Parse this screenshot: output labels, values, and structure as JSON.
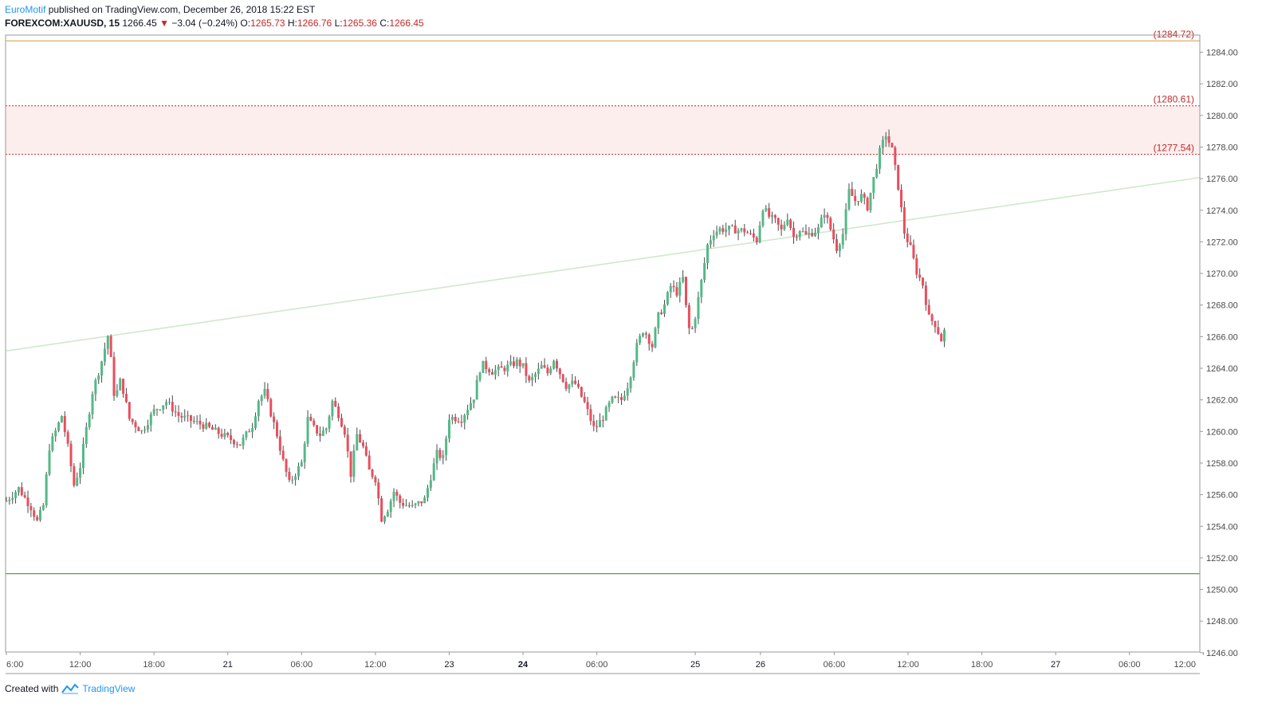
{
  "header": {
    "author": "EuroMotif",
    "published": " published on TradingView.com, December 26, 2018 15:22 EST",
    "symbol": "FOREXCOM:XAUUSD, 15",
    "last": "1266.45",
    "change_arrow": "▼",
    "change": "−3.04 (−0.24%)",
    "o_label": "O:",
    "o_value": "1265.73",
    "h_label": "H:",
    "h_value": "1266.76",
    "l_label": "L:",
    "l_value": "1265.36",
    "c_label": "C:",
    "c_value": "1266.45"
  },
  "footer": {
    "created_with": "Created with",
    "brand": "TradingView"
  },
  "colors": {
    "up": "#53b987",
    "down": "#eb4d5c",
    "level_red": "#c62828",
    "zone_fill": "#fdeeee",
    "support": "#3a7d2c",
    "trendline": "#cfe8cf",
    "top_line": "#d49a3c"
  },
  "chart_data": {
    "type": "candlestick",
    "ylim": [
      1246,
      1285.5
    ],
    "y_ticks": [
      "1284.00",
      "1282.00",
      "1280.00",
      "1278.00",
      "1276.00",
      "1274.00",
      "1272.00",
      "1270.00",
      "1268.00",
      "1266.00",
      "1264.00",
      "1262.00",
      "1260.00",
      "1258.00",
      "1256.00",
      "1254.00",
      "1252.00",
      "1250.00",
      "1248.00",
      "1246.00"
    ],
    "x_ticks": [
      {
        "label": "6:00",
        "t": 0.0
      },
      {
        "label": "12:00",
        "t": 6
      },
      {
        "label": "18:00",
        "t": 12
      },
      {
        "label": "21",
        "t": 18
      },
      {
        "label": "06:00",
        "t": 24
      },
      {
        "label": "12:00",
        "t": 30
      },
      {
        "label": "23",
        "t": 36
      },
      {
        "label": "24",
        "t": 42
      },
      {
        "label": "06:00",
        "t": 48
      },
      {
        "label": "25",
        "t": 56
      },
      {
        "label": "26",
        "t": 61.3
      },
      {
        "label": "06:00",
        "t": 67.3
      },
      {
        "label": "12:00",
        "t": 73.3
      },
      {
        "label": "18:00",
        "t": 79.3
      },
      {
        "label": "27",
        "t": 85.3
      },
      {
        "label": "06:00",
        "t": 91.3
      },
      {
        "label": "12:00",
        "t": 97.3
      }
    ],
    "levels": [
      {
        "label": "(1284.72)",
        "value": 1284.72,
        "kind": "top"
      },
      {
        "label": "(1280.61)",
        "value": 1280.61,
        "kind": "zone"
      },
      {
        "label": "(1277.54)",
        "value": 1277.54,
        "kind": "zone"
      }
    ],
    "support": 1251.0,
    "trendline": {
      "from": {
        "t": 0,
        "y": 1265.1
      },
      "to": {
        "t": 97.3,
        "y": 1276.1
      }
    },
    "anchors": [
      [
        0,
        1255.6
      ],
      [
        1,
        1256.4
      ],
      [
        2,
        1255.2
      ],
      [
        2.5,
        1254.3
      ],
      [
        3,
        1255.3
      ],
      [
        3.5,
        1259.0
      ],
      [
        4,
        1260.0
      ],
      [
        4.5,
        1261.0
      ],
      [
        5,
        1259.0
      ],
      [
        5.5,
        1256.6
      ],
      [
        6,
        1257.8
      ],
      [
        7,
        1262.5
      ],
      [
        7.7,
        1264.3
      ],
      [
        8.3,
        1266.2
      ],
      [
        8.8,
        1262.0
      ],
      [
        9.3,
        1263.3
      ],
      [
        10,
        1260.8
      ],
      [
        11,
        1260.0
      ],
      [
        12,
        1261.3
      ],
      [
        13,
        1261.9
      ],
      [
        14,
        1261.0
      ],
      [
        15,
        1260.7
      ],
      [
        16,
        1260.4
      ],
      [
        17,
        1260.0
      ],
      [
        18,
        1259.6
      ],
      [
        19,
        1259.2
      ],
      [
        20,
        1260.4
      ],
      [
        20.5,
        1262.0
      ],
      [
        21,
        1262.5
      ],
      [
        22,
        1259.8
      ],
      [
        22.5,
        1258.1
      ],
      [
        23,
        1256.7
      ],
      [
        24,
        1258.0
      ],
      [
        24.5,
        1260.8
      ],
      [
        25,
        1260.2
      ],
      [
        25.5,
        1259.8
      ],
      [
        26,
        1260.2
      ],
      [
        26.5,
        1261.9
      ],
      [
        27,
        1261.1
      ],
      [
        27.5,
        1260.0
      ],
      [
        28,
        1257.3
      ],
      [
        28.5,
        1259.8
      ],
      [
        29,
        1259.0
      ],
      [
        29.5,
        1257.5
      ],
      [
        30,
        1257.0
      ],
      [
        30.5,
        1254.5
      ],
      [
        31,
        1255.1
      ],
      [
        31.5,
        1256.2
      ],
      [
        32,
        1255.5
      ],
      [
        33,
        1255.2
      ],
      [
        34,
        1255.7
      ],
      [
        35,
        1258.6
      ],
      [
        35.5,
        1258.3
      ],
      [
        36,
        1260.9
      ],
      [
        37,
        1260.8
      ],
      [
        38,
        1262.2
      ],
      [
        38.6,
        1264.3
      ],
      [
        39.5,
        1263.8
      ],
      [
        40.5,
        1264.0
      ],
      [
        41.5,
        1264.4
      ],
      [
        42,
        1264.1
      ],
      [
        42.5,
        1263.1
      ],
      [
        43.5,
        1264.1
      ],
      [
        44,
        1263.7
      ],
      [
        44.5,
        1264.6
      ],
      [
        45,
        1263.7
      ],
      [
        45.5,
        1262.9
      ],
      [
        46.2,
        1263.1
      ],
      [
        47,
        1261.8
      ],
      [
        47.8,
        1260.1
      ],
      [
        48.5,
        1260.9
      ],
      [
        49.2,
        1262.0
      ],
      [
        50,
        1262.0
      ],
      [
        50.6,
        1263.1
      ],
      [
        51.2,
        1265.3
      ],
      [
        51.8,
        1266.5
      ],
      [
        52.5,
        1265.4
      ],
      [
        53,
        1267.3
      ],
      [
        53.5,
        1268.0
      ],
      [
        54,
        1269.2
      ],
      [
        54.5,
        1268.8
      ],
      [
        55,
        1269.7
      ],
      [
        55.3,
        1267.5
      ],
      [
        55.6,
        1266.0
      ],
      [
        56,
        1267.3
      ],
      [
        56.5,
        1269.5
      ],
      [
        57,
        1271.8
      ],
      [
        57.5,
        1272.6
      ],
      [
        58,
        1272.8
      ],
      [
        59,
        1272.8
      ],
      [
        60,
        1272.7
      ],
      [
        61,
        1272.1
      ],
      [
        61.5,
        1274.2
      ],
      [
        62,
        1273.6
      ],
      [
        62.5,
        1273.3
      ],
      [
        63,
        1272.7
      ],
      [
        63.5,
        1273.6
      ],
      [
        64,
        1272.3
      ],
      [
        64.5,
        1272.8
      ],
      [
        65,
        1272.4
      ],
      [
        66,
        1272.8
      ],
      [
        66.5,
        1273.9
      ],
      [
        67,
        1272.8
      ],
      [
        67.5,
        1271.6
      ],
      [
        68,
        1272.5
      ],
      [
        68.5,
        1275.2
      ],
      [
        69,
        1274.6
      ],
      [
        69.5,
        1274.9
      ],
      [
        70,
        1274.2
      ],
      [
        70.5,
        1276.0
      ],
      [
        71,
        1277.7
      ],
      [
        71.5,
        1278.8
      ],
      [
        72,
        1277.8
      ],
      [
        72.5,
        1275.5
      ],
      [
        73,
        1272.6
      ],
      [
        73.5,
        1271.6
      ],
      [
        74,
        1270.1
      ],
      [
        74.5,
        1269.3
      ],
      [
        75,
        1267.2
      ],
      [
        75.5,
        1266.8
      ],
      [
        76,
        1265.8
      ],
      [
        76.3,
        1266.45
      ]
    ]
  }
}
